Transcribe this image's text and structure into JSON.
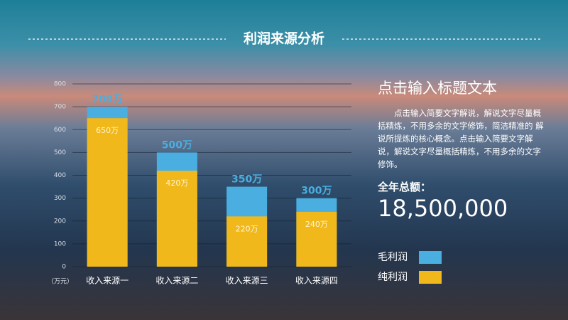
{
  "chart_data": {
    "type": "bar",
    "barmode": "overlay",
    "title": "利润来源分析",
    "categories": [
      "收入来源一",
      "收入来源二",
      "收入来源三",
      "收入来源四"
    ],
    "series": [
      {
        "name": "毛利润",
        "color": "#4aaee0",
        "values": [
          700,
          500,
          350,
          300
        ],
        "value_labels": [
          "700万",
          "500万",
          "350万",
          "300万"
        ]
      },
      {
        "name": "纯利润",
        "color": "#f0b81a",
        "values": [
          650,
          420,
          220,
          240
        ],
        "value_labels": [
          "650万",
          "420万",
          "220万",
          "240万"
        ]
      }
    ],
    "ylabel": "（万元）",
    "ylim": [
      0,
      800
    ],
    "yticks": [
      0,
      100,
      200,
      300,
      400,
      500,
      600,
      700,
      800
    ],
    "grid": true
  },
  "side_panel": {
    "heading": "点击输入标题文本",
    "body": "点击输入简要文字解说，解说文字尽量概括精炼，不用多余的文字修饰，简洁精准的 解说所提炼的核心概念。点击输入简要文字解说，解说文字尽量概括精炼，不用多余的文字修饰。",
    "total_label": "全年总额：",
    "total_value": "18,500,000"
  }
}
